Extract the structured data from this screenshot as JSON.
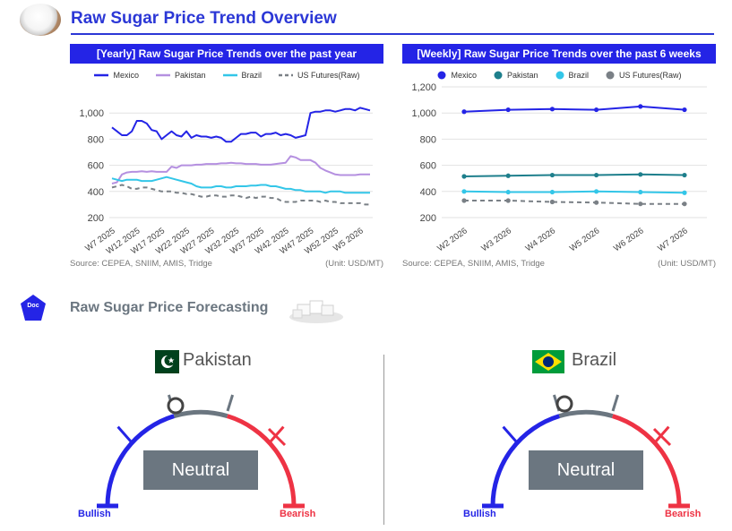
{
  "header": {
    "title": "Raw Sugar Price Trend Overview"
  },
  "yearly": {
    "title": "[Yearly] Raw Sugar Price Trends over the past year",
    "source": "Source: CEPEA, SNIIM, AMIS, Tridge",
    "unit": "(Unit: USD/MT)"
  },
  "weekly": {
    "title": "[Weekly] Raw Sugar Price Trends over the past 6 weeks",
    "source": "Source: CEPEA, SNIIM, AMIS, Tridge",
    "unit": "(Unit: USD/MT)"
  },
  "chart_data": [
    {
      "type": "line",
      "title": "[Yearly] Raw Sugar Price Trends over the past year",
      "ylim": [
        200,
        1200
      ],
      "yticks": [
        200,
        400,
        600,
        800,
        1000
      ],
      "x": [
        "W7 2025",
        "W8 2025",
        "W9 2025",
        "W10 2025",
        "W11 2025",
        "W12 2025",
        "W13 2025",
        "W14 2025",
        "W15 2025",
        "W16 2025",
        "W17 2025",
        "W18 2025",
        "W19 2025",
        "W20 2025",
        "W21 2025",
        "W22 2025",
        "W23 2025",
        "W24 2025",
        "W25 2025",
        "W26 2025",
        "W27 2025",
        "W28 2025",
        "W29 2025",
        "W30 2025",
        "W31 2025",
        "W32 2025",
        "W33 2025",
        "W34 2025",
        "W35 2025",
        "W36 2025",
        "W37 2025",
        "W38 2025",
        "W39 2025",
        "W40 2025",
        "W41 2025",
        "W42 2025",
        "W43 2025",
        "W44 2025",
        "W45 2025",
        "W46 2025",
        "W47 2025",
        "W48 2025",
        "W49 2025",
        "W50 2025",
        "W51 2025",
        "W52 2025",
        "W1 2026",
        "W2 2026",
        "W3 2026",
        "W4 2026",
        "W5 2026",
        "W6 2026",
        "W7 2026"
      ],
      "xtick_labels": [
        "W7 2025",
        "W12 2025",
        "W17 2025",
        "W22 2025",
        "W27 2025",
        "W32 2025",
        "W37 2025",
        "W42 2025",
        "W47 2025",
        "W52 2025",
        "W5 2026"
      ],
      "xtick_index": [
        0,
        5,
        10,
        15,
        20,
        25,
        30,
        35,
        40,
        45,
        50
      ],
      "legend_position": "top",
      "grid": "horizontal",
      "series": [
        {
          "name": "Mexico",
          "color": "#2424e6",
          "dash": false,
          "values": [
            890,
            860,
            830,
            830,
            860,
            940,
            940,
            920,
            870,
            860,
            800,
            830,
            860,
            830,
            820,
            860,
            810,
            830,
            820,
            820,
            810,
            820,
            810,
            780,
            780,
            810,
            840,
            840,
            850,
            850,
            820,
            840,
            840,
            850,
            830,
            840,
            830,
            810,
            820,
            830,
            1000,
            1010,
            1010,
            1020,
            1020,
            1010,
            1020,
            1030,
            1030,
            1020,
            1040,
            1030,
            1020
          ]
        },
        {
          "name": "Pakistan",
          "color": "#b590e0",
          "dash": false,
          "values": [
            460,
            470,
            530,
            545,
            550,
            550,
            555,
            550,
            555,
            550,
            550,
            550,
            590,
            580,
            600,
            600,
            600,
            605,
            605,
            610,
            610,
            610,
            615,
            615,
            620,
            615,
            615,
            610,
            610,
            610,
            605,
            605,
            605,
            610,
            615,
            620,
            670,
            660,
            640,
            640,
            640,
            620,
            580,
            560,
            545,
            530,
            525,
            525,
            525,
            525,
            530,
            530,
            530
          ]
        },
        {
          "name": "Brazil",
          "color": "#33c6e8",
          "dash": false,
          "values": [
            500,
            490,
            480,
            490,
            490,
            490,
            480,
            480,
            480,
            490,
            500,
            510,
            500,
            490,
            480,
            470,
            460,
            440,
            430,
            430,
            430,
            440,
            440,
            430,
            430,
            440,
            440,
            440,
            445,
            445,
            450,
            450,
            440,
            440,
            430,
            420,
            420,
            410,
            410,
            400,
            400,
            400,
            400,
            390,
            400,
            400,
            400,
            390,
            390,
            390,
            390,
            390,
            390
          ]
        },
        {
          "name": "US Futures(Raw)",
          "color": "#7a8086",
          "dash": true,
          "values": [
            430,
            440,
            450,
            440,
            420,
            420,
            430,
            430,
            420,
            410,
            400,
            400,
            400,
            390,
            390,
            380,
            380,
            370,
            360,
            360,
            370,
            370,
            360,
            360,
            370,
            370,
            360,
            350,
            360,
            350,
            360,
            360,
            350,
            350,
            330,
            320,
            320,
            320,
            330,
            330,
            330,
            330,
            320,
            330,
            320,
            320,
            310,
            310,
            310,
            310,
            310,
            300,
            300
          ]
        }
      ]
    },
    {
      "type": "line",
      "title": "[Weekly] Raw Sugar Price Trends over the past 6 weeks",
      "ylim": [
        200,
        1200
      ],
      "yticks": [
        200,
        400,
        600,
        800,
        1000,
        1200
      ],
      "x": [
        "W2 2026",
        "W3 2026",
        "W4 2026",
        "W5 2026",
        "W6 2026",
        "W7 2026"
      ],
      "xtick_labels": [
        "W2 2026",
        "W3 2026",
        "W4 2026",
        "W5 2026",
        "W6 2026",
        "W7 2026"
      ],
      "xtick_index": [
        0,
        1,
        2,
        3,
        4,
        5
      ],
      "legend_position": "top",
      "grid": "horizontal",
      "series": [
        {
          "name": "Mexico",
          "color": "#2424e6",
          "dash": false,
          "values": [
            1010,
            1025,
            1030,
            1025,
            1050,
            1025
          ]
        },
        {
          "name": "Pakistan",
          "color": "#1e7f8c",
          "dash": false,
          "values": [
            515,
            520,
            525,
            525,
            530,
            525
          ]
        },
        {
          "name": "Brazil",
          "color": "#33c6e8",
          "dash": false,
          "values": [
            400,
            395,
            395,
            400,
            395,
            390
          ]
        },
        {
          "name": "US Futures(Raw)",
          "color": "#7a8086",
          "dash": true,
          "values": [
            330,
            330,
            320,
            315,
            305,
            305
          ]
        }
      ]
    }
  ],
  "forecast": {
    "section_title": "Raw Sugar Price Forecasting",
    "doc_badge": "Doc",
    "bullish_label": "Bullish",
    "bearish_label": "Bearish",
    "gauges": [
      {
        "country": "Pakistan",
        "status": "Neutral",
        "flag_icon": "pakistan-flag-icon"
      },
      {
        "country": "Brazil",
        "status": "Neutral",
        "flag_icon": "brazil-flag-icon"
      }
    ]
  }
}
